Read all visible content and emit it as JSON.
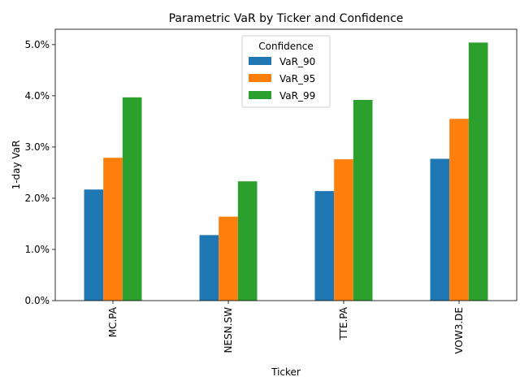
{
  "chart_data": {
    "type": "bar",
    "title": "Parametric VaR by Ticker and Confidence",
    "xlabel": "Ticker",
    "ylabel": "1-day VaR",
    "categories": [
      "MC.PA",
      "NESN.SW",
      "TTE.PA",
      "VOW3.DE"
    ],
    "series": [
      {
        "name": "VaR_90",
        "color": "#1f77b4",
        "values": [
          0.0217,
          0.0128,
          0.0214,
          0.0277
        ]
      },
      {
        "name": "VaR_95",
        "color": "#ff7f0e",
        "values": [
          0.0279,
          0.0164,
          0.0276,
          0.0355
        ]
      },
      {
        "name": "VaR_99",
        "color": "#2ca02c",
        "values": [
          0.0397,
          0.0233,
          0.0392,
          0.0504
        ]
      }
    ],
    "ylim": [
      0,
      0.053
    ],
    "yticks": [
      0.0,
      0.01,
      0.02,
      0.03,
      0.04,
      0.05
    ],
    "ytick_labels": [
      "0.0%",
      "1.0%",
      "2.0%",
      "3.0%",
      "4.0%",
      "5.0%"
    ],
    "legend": {
      "title": "Confidence",
      "placement": "top-center"
    },
    "grid": false
  }
}
